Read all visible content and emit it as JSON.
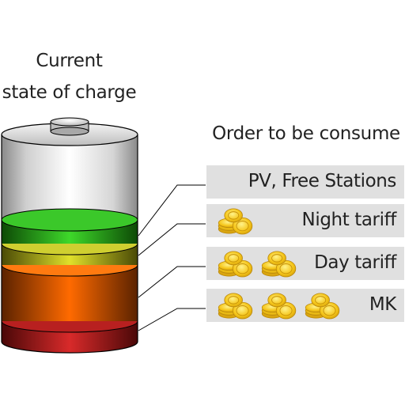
{
  "battery_label": {
    "line1": "Current",
    "line2": "state of charge"
  },
  "order_heading": "Order to be consume",
  "tiers": [
    {
      "label": "PV, Free Stations",
      "cost_coins": 0,
      "band_color": "#2fbe20"
    },
    {
      "label": "Night tariff",
      "cost_coins": 1,
      "band_color": "#c8c820"
    },
    {
      "label": "Day tariff",
      "cost_coins": 2,
      "band_color": "#ff6a00"
    },
    {
      "label": "MK",
      "cost_coins": 3,
      "band_color": "#d42a2a"
    }
  ],
  "icons": {
    "coin": "coin-stack-icon",
    "battery": "battery-icon"
  },
  "colors": {
    "tier_box": "#e0e0e0",
    "coin_gold": "#f5c518",
    "leader_line": "#000000"
  }
}
